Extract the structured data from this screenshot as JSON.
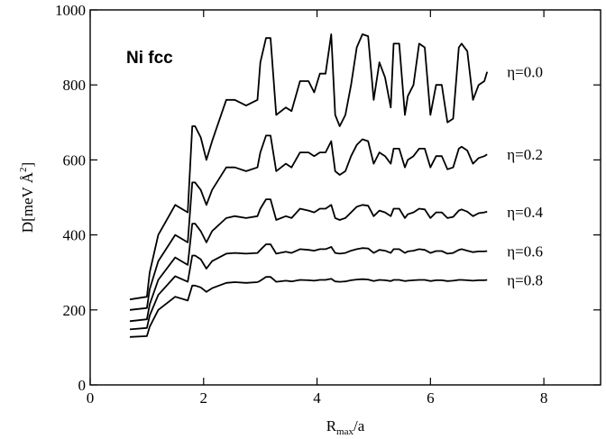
{
  "chart_data": {
    "type": "line",
    "title": "Ni fcc",
    "xlabel_main": "R",
    "xlabel_sub": "max",
    "xlabel_tail": "/a",
    "ylabel_pre": "D[meV ",
    "ylabel_unit": "Å",
    "ylabel_sup": "2",
    "ylabel_post": "]",
    "xlim": [
      0,
      9
    ],
    "ylim": [
      0,
      1000
    ],
    "xticks": [
      0,
      2,
      4,
      6,
      8
    ],
    "yticks": [
      0,
      200,
      400,
      600,
      800,
      1000
    ],
    "grid": false,
    "series": [
      {
        "name": "η=0.0",
        "x": [
          0.7,
          1.0,
          1.05,
          1.2,
          1.5,
          1.72,
          1.8,
          1.85,
          1.95,
          2.05,
          2.15,
          2.4,
          2.55,
          2.75,
          2.95,
          3.0,
          3.1,
          3.18,
          3.28,
          3.45,
          3.55,
          3.7,
          3.85,
          3.95,
          4.05,
          4.15,
          4.25,
          4.32,
          4.4,
          4.5,
          4.6,
          4.7,
          4.8,
          4.9,
          5.0,
          5.1,
          5.2,
          5.3,
          5.35,
          5.45,
          5.55,
          5.6,
          5.7,
          5.8,
          5.9,
          6.0,
          6.1,
          6.2,
          6.3,
          6.4,
          6.5,
          6.55,
          6.65,
          6.75,
          6.85,
          6.95,
          7.0
        ],
        "y": [
          228,
          235,
          300,
          400,
          480,
          460,
          690,
          690,
          660,
          600,
          650,
          760,
          760,
          745,
          760,
          860,
          925,
          925,
          720,
          740,
          730,
          810,
          810,
          780,
          830,
          830,
          935,
          720,
          690,
          720,
          800,
          900,
          935,
          930,
          760,
          860,
          820,
          740,
          910,
          910,
          720,
          770,
          800,
          910,
          900,
          720,
          800,
          800,
          700,
          710,
          900,
          910,
          890,
          760,
          800,
          810,
          835
        ]
      },
      {
        "name": "η=0.2",
        "x": [
          0.7,
          1.0,
          1.05,
          1.2,
          1.5,
          1.72,
          1.8,
          1.85,
          1.95,
          2.05,
          2.15,
          2.4,
          2.55,
          2.75,
          2.95,
          3.0,
          3.1,
          3.18,
          3.28,
          3.45,
          3.55,
          3.7,
          3.85,
          3.95,
          4.05,
          4.15,
          4.25,
          4.32,
          4.4,
          4.5,
          4.6,
          4.7,
          4.8,
          4.9,
          5.0,
          5.1,
          5.2,
          5.3,
          5.35,
          5.45,
          5.55,
          5.6,
          5.7,
          5.8,
          5.9,
          6.0,
          6.1,
          6.2,
          6.3,
          6.4,
          6.5,
          6.55,
          6.65,
          6.75,
          6.85,
          6.95,
          7.0
        ],
        "y": [
          200,
          205,
          255,
          330,
          400,
          380,
          540,
          540,
          520,
          480,
          520,
          580,
          580,
          570,
          580,
          620,
          665,
          665,
          570,
          590,
          580,
          620,
          620,
          610,
          620,
          620,
          650,
          570,
          560,
          570,
          610,
          640,
          655,
          650,
          590,
          620,
          610,
          590,
          630,
          630,
          580,
          600,
          610,
          630,
          630,
          580,
          610,
          610,
          575,
          580,
          630,
          635,
          625,
          590,
          605,
          610,
          615
        ]
      },
      {
        "name": "η=0.4",
        "x": [
          0.7,
          1.0,
          1.05,
          1.2,
          1.5,
          1.72,
          1.8,
          1.85,
          1.95,
          2.05,
          2.15,
          2.4,
          2.55,
          2.75,
          2.95,
          3.0,
          3.1,
          3.18,
          3.28,
          3.45,
          3.55,
          3.7,
          3.85,
          3.95,
          4.05,
          4.15,
          4.25,
          4.32,
          4.4,
          4.5,
          4.6,
          4.7,
          4.8,
          4.9,
          5.0,
          5.1,
          5.2,
          5.3,
          5.35,
          5.45,
          5.55,
          5.6,
          5.7,
          5.8,
          5.9,
          6.0,
          6.1,
          6.2,
          6.3,
          6.4,
          6.5,
          6.55,
          6.65,
          6.75,
          6.85,
          6.95,
          7.0
        ],
        "y": [
          170,
          175,
          215,
          280,
          340,
          320,
          430,
          430,
          410,
          380,
          410,
          445,
          450,
          445,
          450,
          470,
          495,
          495,
          440,
          450,
          445,
          470,
          465,
          460,
          470,
          470,
          480,
          445,
          440,
          445,
          460,
          475,
          480,
          478,
          450,
          465,
          460,
          450,
          470,
          470,
          445,
          455,
          460,
          470,
          468,
          445,
          460,
          460,
          445,
          448,
          465,
          468,
          462,
          450,
          458,
          460,
          462
        ]
      },
      {
        "name": "η=0.6",
        "x": [
          0.7,
          1.0,
          1.05,
          1.2,
          1.5,
          1.72,
          1.8,
          1.85,
          1.95,
          2.05,
          2.15,
          2.4,
          2.55,
          2.75,
          2.95,
          3.0,
          3.1,
          3.18,
          3.28,
          3.45,
          3.55,
          3.7,
          3.85,
          3.95,
          4.05,
          4.15,
          4.25,
          4.32,
          4.4,
          4.5,
          4.6,
          4.7,
          4.8,
          4.9,
          5.0,
          5.1,
          5.2,
          5.3,
          5.35,
          5.45,
          5.55,
          5.6,
          5.7,
          5.8,
          5.9,
          6.0,
          6.1,
          6.2,
          6.3,
          6.4,
          6.5,
          6.55,
          6.65,
          6.75,
          6.85,
          6.95,
          7.0
        ],
        "y": [
          148,
          152,
          185,
          240,
          290,
          275,
          345,
          345,
          335,
          310,
          330,
          350,
          352,
          350,
          352,
          360,
          375,
          375,
          350,
          355,
          352,
          362,
          360,
          358,
          362,
          362,
          368,
          352,
          350,
          352,
          358,
          362,
          365,
          364,
          352,
          360,
          358,
          352,
          362,
          362,
          352,
          356,
          358,
          362,
          360,
          352,
          357,
          357,
          350,
          352,
          360,
          362,
          358,
          354,
          356,
          356,
          357
        ]
      },
      {
        "name": "η=0.8",
        "x": [
          0.7,
          1.0,
          1.05,
          1.2,
          1.5,
          1.72,
          1.8,
          1.85,
          1.95,
          2.05,
          2.15,
          2.4,
          2.55,
          2.75,
          2.95,
          3.0,
          3.1,
          3.18,
          3.28,
          3.45,
          3.55,
          3.7,
          3.85,
          3.95,
          4.05,
          4.15,
          4.25,
          4.32,
          4.4,
          4.5,
          4.6,
          4.7,
          4.8,
          4.9,
          5.0,
          5.1,
          5.2,
          5.3,
          5.35,
          5.45,
          5.55,
          5.6,
          5.7,
          5.8,
          5.9,
          6.0,
          6.1,
          6.2,
          6.3,
          6.4,
          6.5,
          6.55,
          6.65,
          6.75,
          6.85,
          6.95,
          7.0
        ],
        "y": [
          128,
          130,
          155,
          200,
          235,
          225,
          265,
          265,
          260,
          248,
          258,
          272,
          274,
          272,
          274,
          278,
          288,
          288,
          275,
          278,
          276,
          280,
          279,
          278,
          280,
          280,
          283,
          276,
          275,
          276,
          279,
          281,
          282,
          281,
          277,
          280,
          279,
          277,
          280,
          280,
          277,
          278,
          279,
          280,
          280,
          277,
          279,
          279,
          277,
          278,
          280,
          280,
          279,
          278,
          279,
          279,
          280
        ]
      }
    ]
  }
}
